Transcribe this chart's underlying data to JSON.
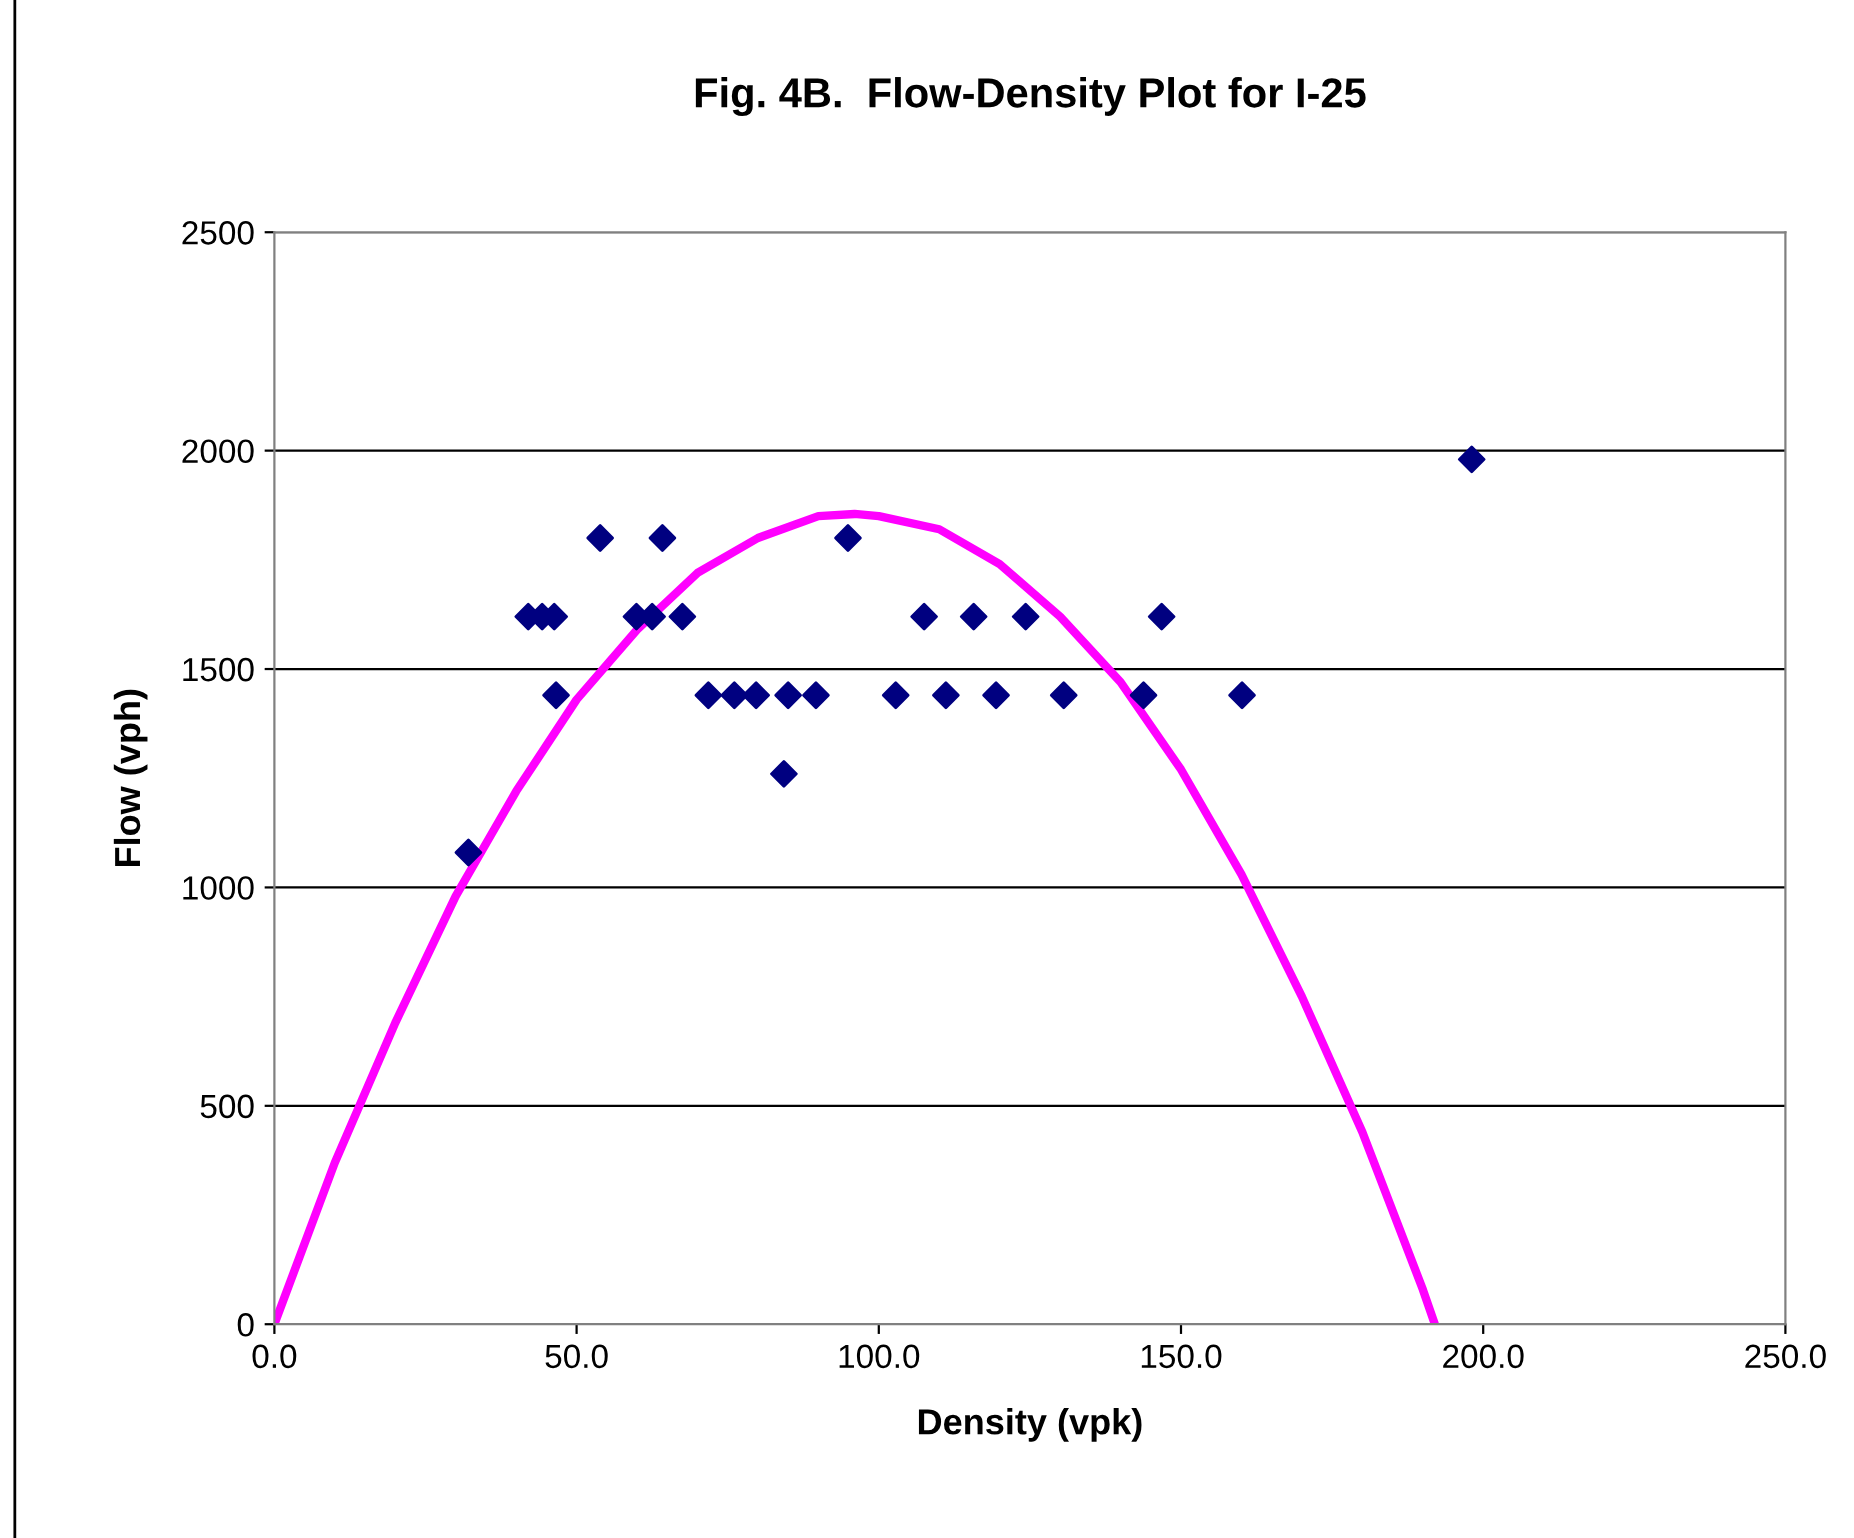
{
  "chart_data": {
    "type": "scatter",
    "title": "Fig. 4B.  Flow-Density Plot for I-25",
    "xlabel": "Density (vpk)",
    "ylabel": "Flow (vph)",
    "xlim": [
      0,
      250
    ],
    "ylim": [
      0,
      2500
    ],
    "xticks": [
      {
        "value": 0,
        "label": "0.0"
      },
      {
        "value": 50,
        "label": "50.0"
      },
      {
        "value": 100,
        "label": "100.0"
      },
      {
        "value": 150,
        "label": "150.0"
      },
      {
        "value": 200,
        "label": "200.0"
      },
      {
        "value": 250,
        "label": "250.0"
      }
    ],
    "yticks": [
      0,
      500,
      1000,
      1500,
      2000,
      2500
    ],
    "grid": "y",
    "legend": false,
    "series": [
      {
        "type": "line",
        "color": "#ff00ff",
        "marker": "none",
        "line_style": "solid",
        "x": [
          0,
          10,
          20,
          30,
          40,
          50,
          60,
          70,
          80,
          90,
          96,
          100,
          110,
          120,
          130,
          140,
          150,
          160,
          170,
          180,
          190,
          192
        ],
        "values": [
          0,
          370,
          690,
          980,
          1220,
          1430,
          1590,
          1720,
          1800,
          1850,
          1855,
          1850,
          1820,
          1740,
          1620,
          1470,
          1270,
          1030,
          750,
          440,
          80,
          0
        ]
      },
      {
        "color": "#000080",
        "marker": "diamond",
        "x": [
          32.1,
          42.0,
          44.3,
          46.3,
          46.6,
          53.9,
          59.9,
          62.5,
          64.2,
          67.5,
          71.8,
          76.1,
          79.7,
          84.3,
          85.0,
          89.6,
          94.9,
          102.8,
          107.5,
          111.1,
          115.7,
          119.4,
          124.3,
          130.6,
          143.8,
          146.8,
          160.1,
          198.1
        ],
        "values": [
          1080,
          1620,
          1620,
          1620,
          1440,
          1800,
          1620,
          1620,
          1800,
          1620,
          1440,
          1440,
          1440,
          1260,
          1440,
          1440,
          1800,
          1440,
          1620,
          1440,
          1620,
          1440,
          1620,
          1440,
          1440,
          1620,
          1440,
          1980
        ]
      }
    ]
  }
}
